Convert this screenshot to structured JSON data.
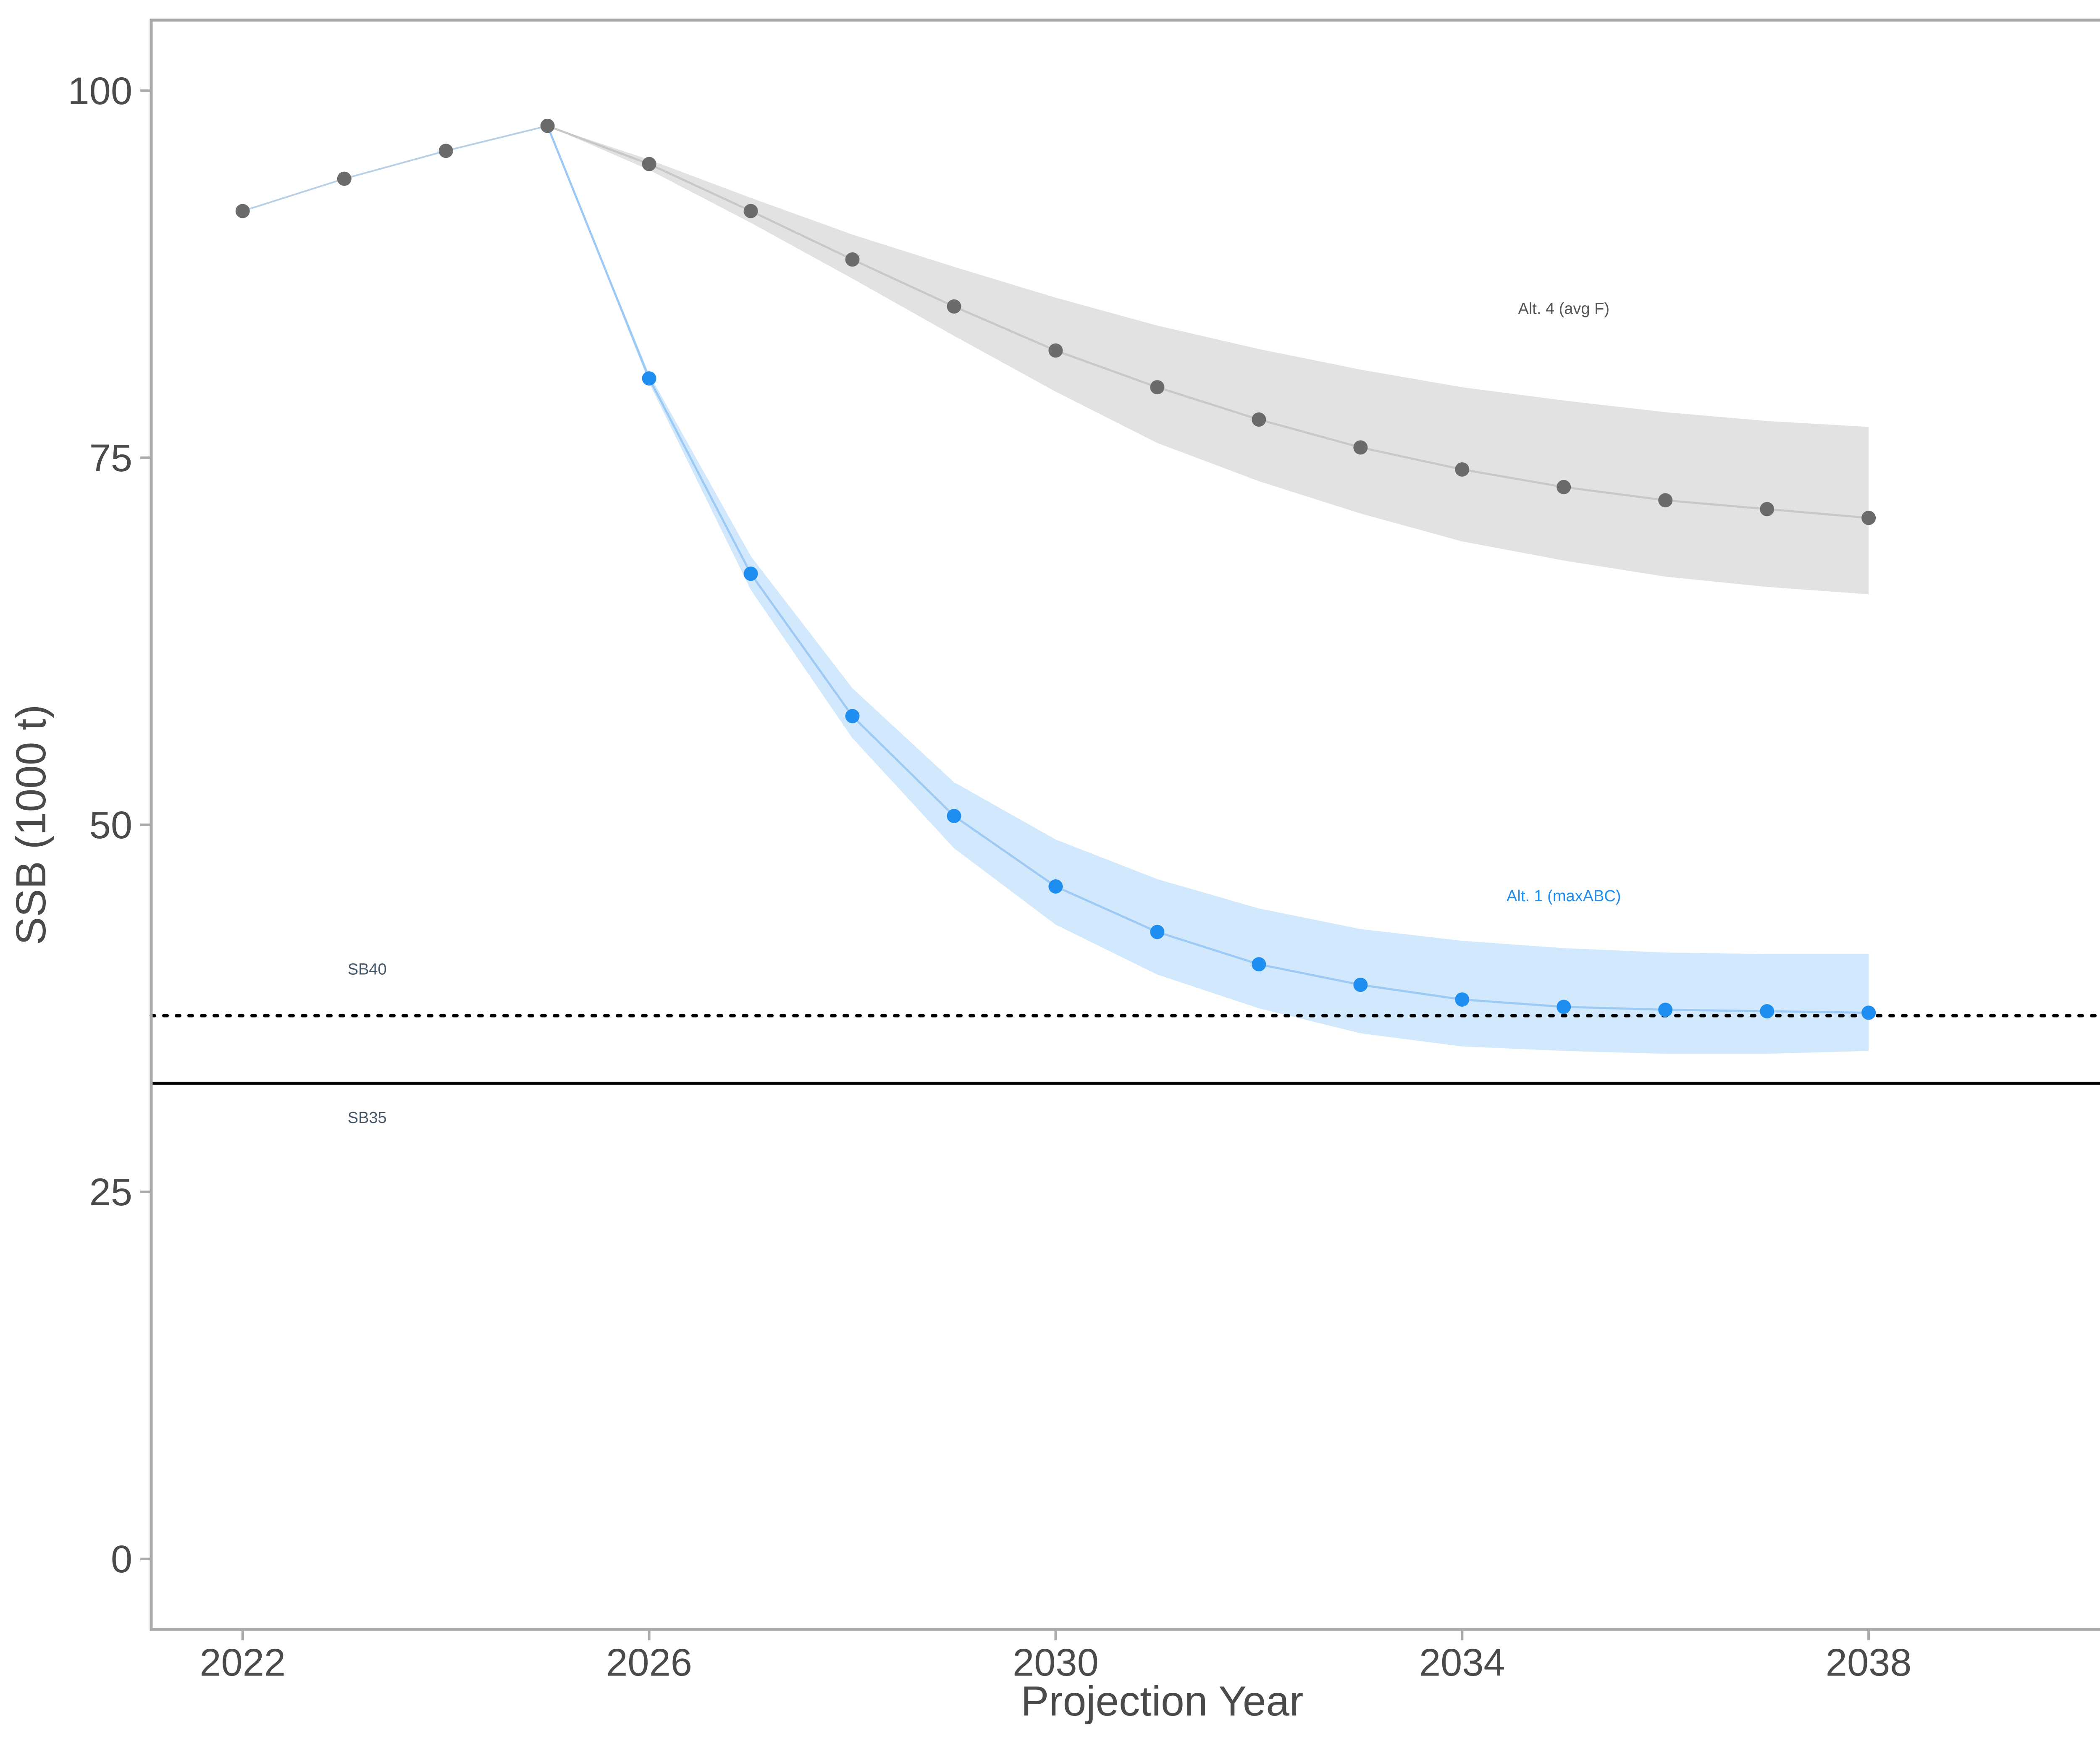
{
  "chart_data": {
    "type": "scatter",
    "title": "",
    "xlabel": "Projection Year",
    "ylabel": "SSB (1000 t)",
    "xlim": [
      2021.1,
      2041.0
    ],
    "ylim": [
      -4.8,
      104.8
    ],
    "xticks": [
      2022,
      2026,
      2030,
      2034,
      2038
    ],
    "yticks": [
      0,
      25,
      50,
      75,
      100
    ],
    "grid": false,
    "legend": "none",
    "colors": {
      "alt4_points": "#6b6b6b",
      "alt4_band": "#e2e2e2",
      "alt1_points": "#1f8ef1",
      "alt1_band": "#d2e8fc",
      "alt1_label": "#1f8ef1",
      "alt4_label": "#555555",
      "ref_label": "#445566",
      "axis": "#aaaaaa"
    },
    "historical": {
      "x": [
        2022,
        2023,
        2024,
        2025
      ],
      "y": [
        91.8,
        94.0,
        95.9,
        97.6
      ]
    },
    "series": [
      {
        "key": "alt4",
        "x": [
          2026,
          2027,
          2028,
          2029,
          2030,
          2031,
          2032,
          2033,
          2034,
          2035,
          2036,
          2037,
          2038
        ],
        "y": [
          95.0,
          91.8,
          88.5,
          85.3,
          82.3,
          79.8,
          77.6,
          75.7,
          74.2,
          73.0,
          72.1,
          71.5,
          70.9
        ],
        "upper": [
          95.3,
          92.7,
          90.2,
          88.0,
          85.9,
          84.0,
          82.4,
          81.0,
          79.8,
          78.9,
          78.1,
          77.5,
          77.1
        ],
        "lower": [
          94.6,
          91.0,
          87.2,
          83.3,
          79.5,
          76.0,
          73.4,
          71.2,
          69.3,
          68.0,
          66.9,
          66.2,
          65.7
        ],
        "label": "Alt. 4 (avg F)",
        "label_x": 2035.0,
        "label_y": 84.8
      },
      {
        "key": "alt1",
        "x": [
          2026,
          2027,
          2028,
          2029,
          2030,
          2031,
          2032,
          2033,
          2034,
          2035,
          2036,
          2037,
          2038
        ],
        "y": [
          80.4,
          67.1,
          57.4,
          50.6,
          45.8,
          42.7,
          40.5,
          39.1,
          38.1,
          37.6,
          37.4,
          37.3,
          37.2
        ],
        "upper": [
          80.7,
          68.3,
          59.3,
          52.9,
          49.0,
          46.3,
          44.3,
          42.9,
          42.1,
          41.6,
          41.3,
          41.2,
          41.2
        ],
        "lower": [
          80.1,
          66.0,
          55.9,
          48.4,
          43.2,
          39.8,
          37.5,
          35.8,
          34.9,
          34.6,
          34.4,
          34.4,
          34.6
        ],
        "label": "Alt. 1 (maxABC)",
        "label_x": 2035.0,
        "label_y": 44.8
      }
    ],
    "reference_lines": [
      {
        "key": "sb40",
        "y": 37.0,
        "style": "dotted",
        "label": "SB40",
        "label_x": 2023.0,
        "label_y": 39.8
      },
      {
        "key": "sb35",
        "y": 32.4,
        "style": "solid",
        "label": "SB35",
        "label_x": 2023.0,
        "label_y": 29.7
      }
    ]
  }
}
